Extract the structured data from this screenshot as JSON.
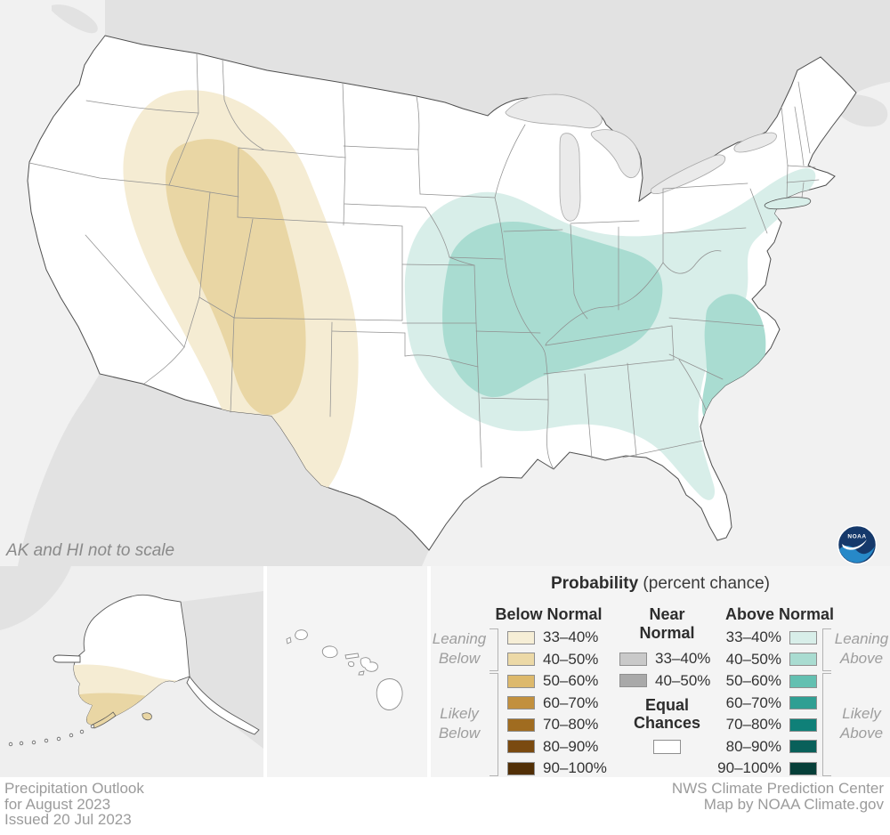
{
  "map": {
    "note": "AK and HI not to scale",
    "logo_text": "NOAA",
    "shading": {
      "ocean": "#f1f1f1",
      "neighbor_land": "#e2e2e2",
      "land": "#ffffff",
      "lake": "#eaeaea",
      "state_border": "#909090",
      "outline": "#4f4f4f",
      "below_outer": "#f5ecd3",
      "below_inner": "#e9d6a4",
      "above_outer": "#d8eee9",
      "above_inner": "#a9dcd1"
    }
  },
  "legend": {
    "title_bold": "Probability",
    "title_rest": " (percent chance)",
    "below": {
      "header": "Below Normal",
      "rows": [
        {
          "label": "33–40%",
          "color": "#f6eed6"
        },
        {
          "label": "40–50%",
          "color": "#ecd9a7"
        },
        {
          "label": "50–60%",
          "color": "#ddb96c"
        },
        {
          "label": "60–70%",
          "color": "#c2903e"
        },
        {
          "label": "70–80%",
          "color": "#a06c20"
        },
        {
          "label": "80–90%",
          "color": "#7a4a10"
        },
        {
          "label": "90–100%",
          "color": "#522f06"
        }
      ]
    },
    "near": {
      "header_line1": "Near",
      "header_line2": "Normal",
      "rows": [
        {
          "label": "33–40%",
          "color": "#c9c9c9"
        },
        {
          "label": "40–50%",
          "color": "#a9a9a9"
        }
      ],
      "equal_line1": "Equal",
      "equal_line2": "Chances",
      "equal_color": "#ffffff"
    },
    "above": {
      "header": "Above Normal",
      "rows": [
        {
          "label": "33–40%",
          "color": "#d8eee9"
        },
        {
          "label": "40–50%",
          "color": "#a9dcd1"
        },
        {
          "label": "50–60%",
          "color": "#63c0b1"
        },
        {
          "label": "60–70%",
          "color": "#2f9f93"
        },
        {
          "label": "70–80%",
          "color": "#0f8078"
        },
        {
          "label": "80–90%",
          "color": "#09605a"
        },
        {
          "label": "90–100%",
          "color": "#063f39"
        }
      ]
    },
    "groups": {
      "leaning_below": {
        "line1": "Leaning",
        "line2": "Below"
      },
      "likely_below": {
        "line1": "Likely",
        "line2": "Below"
      },
      "leaning_above": {
        "line1": "Leaning",
        "line2": "Above"
      },
      "likely_above": {
        "line1": "Likely",
        "line2": "Above"
      }
    }
  },
  "footer": {
    "left_lines": [
      "Precipitation Outlook",
      "for August 2023",
      "Issued 20 Jul 2023"
    ],
    "right_lines": [
      "NWS Climate Prediction Center",
      "Map by NOAA Climate.gov"
    ]
  }
}
